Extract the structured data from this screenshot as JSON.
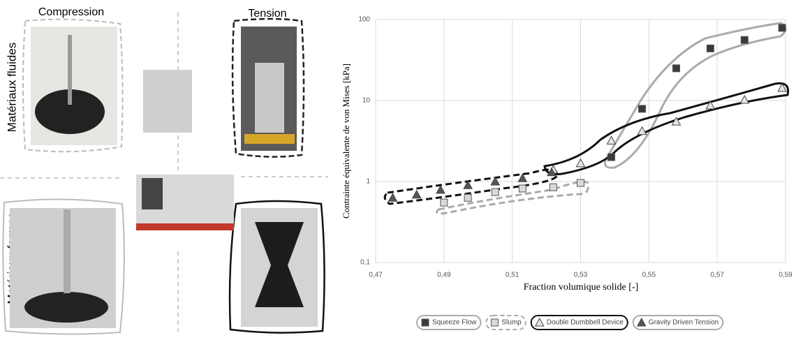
{
  "photo_labels": {
    "compression": "Compression",
    "tension": "Tension",
    "fluid": "Matériaux fluides",
    "firm": "Matériaux fermes"
  },
  "chart_data": {
    "type": "scatter",
    "x_label": "Fraction volumique solide [-]",
    "y_label": "Contrainte équivalente de von Mises [kPa]",
    "xlim": [
      0.47,
      0.59
    ],
    "xticks": [
      {
        "value": 0.47,
        "label": "0,47"
      },
      {
        "value": 0.49,
        "label": "0,49"
      },
      {
        "value": 0.51,
        "label": "0,51"
      },
      {
        "value": 0.53,
        "label": "0,53"
      },
      {
        "value": 0.55,
        "label": "0,55"
      },
      {
        "value": 0.57,
        "label": "0,57"
      },
      {
        "value": 0.59,
        "label": "0,59"
      }
    ],
    "ylim": [
      0.1,
      100
    ],
    "yticks": [
      {
        "value": 0.1,
        "label": "0,1"
      },
      1,
      10,
      100
    ],
    "yscale": "log",
    "grid": true,
    "legend": "bottom",
    "series": [
      {
        "name": "Squeeze Flow",
        "marker": "square",
        "color": "#3a3a3a",
        "x": [
          0.539,
          0.548,
          0.558,
          0.568,
          0.578,
          0.589
        ],
        "values": [
          2.0,
          7.9,
          25,
          44,
          56,
          79
        ]
      },
      {
        "name": "Slump",
        "marker": "square",
        "color": "#d9d9d9",
        "x": [
          0.49,
          0.497,
          0.505,
          0.513,
          0.522,
          0.53
        ],
        "values": [
          0.55,
          0.63,
          0.74,
          0.82,
          0.85,
          0.96
        ]
      },
      {
        "name": "Double Dumbbell Device",
        "marker": "triangle",
        "color": "#e6e6e6",
        "x": [
          0.522,
          0.53,
          0.539,
          0.548,
          0.558,
          0.568,
          0.578,
          0.589
        ],
        "values": [
          1.4,
          1.68,
          3.2,
          4.2,
          5.5,
          8.7,
          10.2,
          14.3
        ]
      },
      {
        "name": "Gravity Driven Tension",
        "marker": "triangle",
        "color": "#555555",
        "x": [
          0.475,
          0.482,
          0.489,
          0.497,
          0.505,
          0.513,
          0.5215
        ],
        "values": [
          0.63,
          0.69,
          0.79,
          0.9,
          1.0,
          1.1,
          1.3
        ]
      }
    ]
  }
}
